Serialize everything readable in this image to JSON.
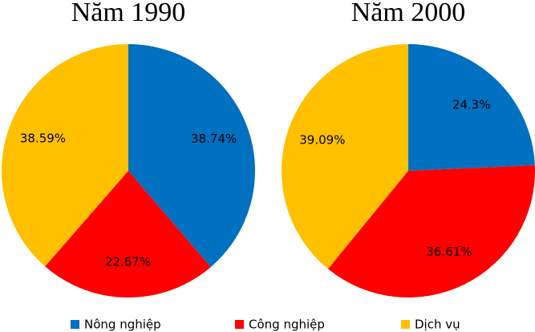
{
  "chart_data": [
    {
      "type": "pie",
      "title": "Năm 1990",
      "categories": [
        "Nông nghiệp",
        "Công nghiệp",
        "Dịch vụ"
      ],
      "colors": [
        "#0070c0",
        "#ff0000",
        "#ffc000"
      ],
      "values": [
        38.74,
        22.67,
        38.59
      ],
      "value_labels": [
        "38.74%",
        "22.67%",
        "38.59%"
      ]
    },
    {
      "type": "pie",
      "title": "Năm 2000",
      "categories": [
        "Nông nghiệp",
        "Công nghiệp",
        "Dịch vụ"
      ],
      "colors": [
        "#0070c0",
        "#ff0000",
        "#ffc000"
      ],
      "values": [
        24.3,
        36.61,
        39.09
      ],
      "value_labels": [
        "24.3%",
        "36.61%",
        "39.09%"
      ]
    }
  ]
}
